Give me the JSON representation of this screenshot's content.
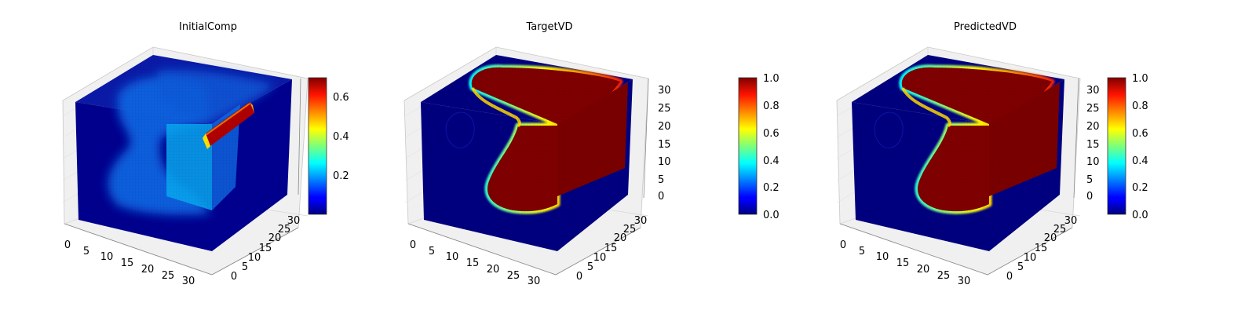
{
  "figure": {
    "panels": [
      {
        "title": "InitialComp"
      },
      {
        "title": "TargetVD"
      },
      {
        "title": "PredictedVD"
      }
    ]
  },
  "chart_data": [
    {
      "type": "heatmap",
      "subtype": "3d-voxel",
      "title": "InitialComp",
      "xlabel": "",
      "ylabel": "",
      "zlabel": "",
      "x_ticks": [
        0,
        5,
        10,
        15,
        20,
        25,
        30
      ],
      "y_ticks": [
        0,
        5,
        10,
        15,
        20,
        25,
        30
      ],
      "z_ticks": [],
      "xlim": [
        0,
        32
      ],
      "ylim": [
        0,
        32
      ],
      "zlim": [
        0,
        32
      ],
      "colormap": "jet",
      "colorbar": {
        "min": 0.0,
        "max": 0.7,
        "ticks": [
          0.2,
          0.4,
          0.6
        ]
      },
      "observations": {
        "background_value": 0.0,
        "blob_value": 0.15,
        "hotspot_value": 0.7
      }
    },
    {
      "type": "heatmap",
      "subtype": "3d-voxel",
      "title": "TargetVD",
      "xlabel": "",
      "ylabel": "",
      "zlabel": "",
      "x_ticks": [
        0,
        5,
        10,
        15,
        20,
        25,
        30
      ],
      "y_ticks": [
        0,
        5,
        10,
        15,
        20,
        25,
        30
      ],
      "z_ticks": [
        0,
        5,
        10,
        15,
        20,
        25,
        30
      ],
      "xlim": [
        0,
        32
      ],
      "ylim": [
        0,
        32
      ],
      "zlim": [
        0,
        32
      ],
      "colormap": "jet",
      "colorbar": {
        "min": 0.0,
        "max": 1.0,
        "ticks": [
          0.0,
          0.2,
          0.4,
          0.6,
          0.8,
          1.0
        ]
      },
      "observations": {
        "inside_value": 1.0,
        "outside_value": 0.0
      }
    },
    {
      "type": "heatmap",
      "subtype": "3d-voxel",
      "title": "PredictedVD",
      "xlabel": "",
      "ylabel": "",
      "zlabel": "",
      "x_ticks": [
        0,
        5,
        10,
        15,
        20,
        25,
        30
      ],
      "y_ticks": [
        0,
        5,
        10,
        15,
        20,
        25,
        30
      ],
      "z_ticks": [
        0,
        5,
        10,
        15,
        20,
        25,
        30
      ],
      "xlim": [
        0,
        32
      ],
      "ylim": [
        0,
        32
      ],
      "zlim": [
        0,
        32
      ],
      "colormap": "jet",
      "colorbar": {
        "min": 0.0,
        "max": 1.0,
        "ticks": [
          0.0,
          0.2,
          0.4,
          0.6,
          0.8,
          1.0
        ]
      },
      "observations": {
        "inside_value": 1.0,
        "outside_value": 0.0
      }
    }
  ],
  "colors": {
    "cube_dark": "#00007f",
    "blob_blue": "#0a5cd8",
    "hot_red": "#b00000",
    "axis_pane": "#f2f2f2",
    "axis_line": "#b0b0b0"
  }
}
